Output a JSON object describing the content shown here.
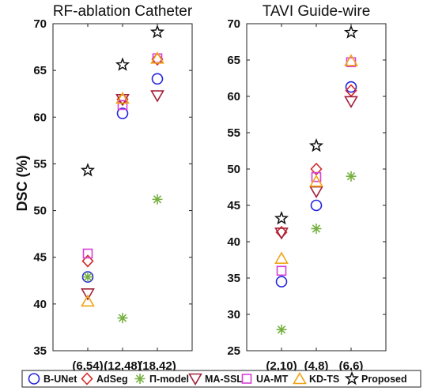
{
  "chart_data": {
    "type": "scatter",
    "ylabel": "DSC (%)",
    "legend": {
      "placement": "bottom",
      "entries": [
        "B-UNet",
        "AdSeg",
        "Π-model",
        "MA-SSL",
        "UA-MT",
        "KD-TS",
        "Proposed"
      ]
    },
    "methods": [
      {
        "name": "B-UNet",
        "marker": "circle",
        "color": "#2424e0"
      },
      {
        "name": "AdSeg",
        "marker": "diamond",
        "color": "#d62828"
      },
      {
        "name": "Π-model",
        "marker": "asterisk",
        "color": "#76b041"
      },
      {
        "name": "MA-SSL",
        "marker": "triangle-down",
        "color": "#a3203a"
      },
      {
        "name": "UA-MT",
        "marker": "square",
        "color": "#d63fd6"
      },
      {
        "name": "KD-TS",
        "marker": "triangle-up",
        "color": "#f0a412"
      },
      {
        "name": "Proposed",
        "marker": "star",
        "color": "#111111"
      }
    ],
    "panels": [
      {
        "title": "RF-ablation Catheter",
        "categories": [
          "(6,54)",
          "(12,48)",
          "(18,42)"
        ],
        "ylim": [
          35,
          70
        ],
        "yticks": [
          35,
          40,
          45,
          50,
          55,
          60,
          65,
          70
        ],
        "series": [
          {
            "name": "B-UNet",
            "values": [
              42.9,
              60.4,
              64.1
            ]
          },
          {
            "name": "AdSeg",
            "values": [
              44.6,
              61.9,
              66.2
            ]
          },
          {
            "name": "Π-model",
            "values": [
              42.9,
              38.5,
              51.2
            ]
          },
          {
            "name": "MA-SSL",
            "values": [
              41.1,
              61.9,
              62.3
            ]
          },
          {
            "name": "UA-MT",
            "values": [
              45.4,
              61.3,
              66.3
            ]
          },
          {
            "name": "KD-TS",
            "values": [
              40.3,
              62.0,
              66.3
            ]
          },
          {
            "name": "Proposed",
            "values": [
              54.3,
              65.6,
              69.1
            ]
          }
        ]
      },
      {
        "title": "TAVI Guide-wire",
        "categories": [
          "(2,10)",
          "(4,8)",
          "(6,6)"
        ],
        "ylim": [
          25,
          70
        ],
        "yticks": [
          25,
          30,
          35,
          40,
          45,
          50,
          55,
          60,
          65,
          70
        ],
        "series": [
          {
            "name": "B-UNet",
            "values": [
              34.5,
              45.0,
              61.3
            ]
          },
          {
            "name": "AdSeg",
            "values": [
              41.3,
              50.0,
              60.8
            ]
          },
          {
            "name": "Π-model",
            "values": [
              27.9,
              41.8,
              49.0
            ]
          },
          {
            "name": "MA-SSL",
            "values": [
              41.2,
              46.9,
              59.3
            ]
          },
          {
            "name": "UA-MT",
            "values": [
              36.0,
              48.9,
              64.7
            ]
          },
          {
            "name": "KD-TS",
            "values": [
              37.7,
              48.3,
              64.9
            ]
          },
          {
            "name": "Proposed",
            "values": [
              43.2,
              53.2,
              68.8
            ]
          }
        ]
      }
    ]
  }
}
